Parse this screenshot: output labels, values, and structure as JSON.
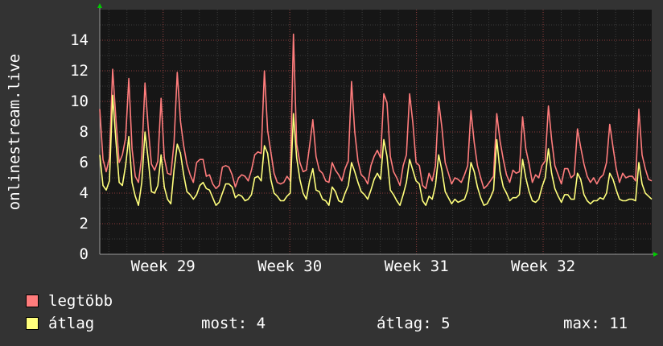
{
  "chart_data": {
    "type": "line",
    "title": "",
    "ylabel": "onlinestream.live",
    "xlabel": "",
    "ylim": [
      0,
      16
    ],
    "yticks": [
      0,
      2,
      4,
      6,
      8,
      10,
      12,
      14
    ],
    "x_tick_labels": [
      "Week 29",
      "Week 30",
      "Week 31",
      "Week 32"
    ],
    "grid": true,
    "legend_placement": "bottom-left",
    "x_unit": "day",
    "x_range": [
      0,
      30.5
    ],
    "series": [
      {
        "name": "legtöbb",
        "color": "#ff7c7c",
        "values": [
          9.5,
          6.2,
          5.4,
          6.3,
          12.1,
          8.8,
          6.0,
          6.5,
          7.6,
          11.5,
          6.9,
          5.1,
          4.7,
          6.4,
          11.2,
          8.3,
          5.9,
          5.5,
          6.1,
          10.2,
          6.3,
          5.3,
          5.2,
          7.3,
          11.9,
          8.7,
          7.1,
          5.9,
          5.2,
          4.7,
          6.0,
          6.2,
          6.2,
          5.1,
          5.2,
          4.6,
          4.3,
          4.5,
          5.7,
          5.8,
          5.7,
          5.2,
          4.4,
          5.0,
          5.2,
          5.1,
          4.8,
          5.5,
          6.5,
          6.7,
          6.6,
          12.0,
          8.1,
          6.7,
          5.3,
          4.7,
          4.6,
          4.7,
          5.1,
          4.8,
          14.4,
          7.2,
          6.0,
          5.4,
          5.5,
          7.1,
          8.8,
          6.4,
          5.5,
          5.3,
          4.8,
          4.7,
          6.0,
          5.5,
          5.2,
          4.8,
          5.6,
          6.1,
          11.3,
          8.0,
          6.1,
          5.2,
          5.0,
          4.6,
          5.8,
          6.4,
          6.8,
          6.3,
          10.5,
          9.9,
          6.4,
          5.4,
          5.0,
          4.5,
          5.8,
          6.5,
          10.5,
          8.6,
          6.0,
          5.8,
          4.5,
          4.3,
          5.3,
          4.8,
          5.8,
          10.0,
          8.3,
          6.0,
          5.3,
          4.6,
          5.0,
          4.9,
          4.7,
          5.2,
          5.8,
          9.4,
          7.3,
          5.8,
          5.0,
          4.3,
          4.5,
          4.8,
          5.1,
          9.2,
          7.4,
          6.2,
          5.2,
          4.7,
          5.5,
          5.3,
          5.4,
          9.0,
          6.9,
          5.9,
          4.7,
          5.2,
          5.0,
          5.8,
          6.1,
          9.7,
          7.5,
          5.8,
          5.2,
          4.6,
          5.6,
          5.6,
          5.0,
          5.2,
          8.2,
          7.0,
          5.9,
          5.1,
          4.7,
          5.0,
          4.6,
          5.0,
          5.2,
          6.0,
          8.5,
          7.0,
          5.6,
          4.7,
          5.3,
          5.0,
          5.1,
          5.1,
          4.8,
          9.5,
          6.5,
          5.6,
          4.9,
          4.8
        ]
      },
      {
        "name": "átlag",
        "color": "#ffff7c",
        "values": [
          6.5,
          4.5,
          4.2,
          4.8,
          10.4,
          7.4,
          4.7,
          4.5,
          5.8,
          7.7,
          4.7,
          3.8,
          3.2,
          4.7,
          8.0,
          6.2,
          4.1,
          4.0,
          4.5,
          6.5,
          4.4,
          3.6,
          3.3,
          5.5,
          7.2,
          6.6,
          5.2,
          4.1,
          3.9,
          3.6,
          3.9,
          4.5,
          4.7,
          4.3,
          4.2,
          3.7,
          3.2,
          3.4,
          4.0,
          4.6,
          4.6,
          4.4,
          3.7,
          3.9,
          3.8,
          3.5,
          3.6,
          3.9,
          5.0,
          5.1,
          4.8,
          7.1,
          6.6,
          4.9,
          4.0,
          3.8,
          3.5,
          3.5,
          3.8,
          4.0,
          9.2,
          6.3,
          4.9,
          4.0,
          3.6,
          4.8,
          5.6,
          4.2,
          4.1,
          3.6,
          3.5,
          3.2,
          4.4,
          4.1,
          3.5,
          3.4,
          4.0,
          4.5,
          6.0,
          5.4,
          4.7,
          4.1,
          3.9,
          3.6,
          4.2,
          4.9,
          5.3,
          4.9,
          7.5,
          6.4,
          4.2,
          3.9,
          3.5,
          3.2,
          3.9,
          4.7,
          6.2,
          5.5,
          4.8,
          4.6,
          3.5,
          3.2,
          3.8,
          3.6,
          4.5,
          6.5,
          5.5,
          4.1,
          3.7,
          3.3,
          3.6,
          3.4,
          3.5,
          3.6,
          4.2,
          6.0,
          5.4,
          4.4,
          3.7,
          3.2,
          3.3,
          3.7,
          4.2,
          7.5,
          5.4,
          4.4,
          4.0,
          3.5,
          3.7,
          3.7,
          3.9,
          6.2,
          5.0,
          4.1,
          3.5,
          3.4,
          3.6,
          4.4,
          5.0,
          6.9,
          5.3,
          4.3,
          3.8,
          3.4,
          3.9,
          3.9,
          3.6,
          3.6,
          5.3,
          4.9,
          3.9,
          3.5,
          3.3,
          3.5,
          3.5,
          3.7,
          3.6,
          4.0,
          5.3,
          4.9,
          4.2,
          3.6,
          3.5,
          3.5,
          3.6,
          3.6,
          3.5,
          6.0,
          4.6,
          4.0,
          3.8,
          3.6
        ]
      }
    ]
  },
  "legend": {
    "max_label": "legtöbb",
    "avg_label": "átlag",
    "max_color": "#ff7c7c",
    "avg_color": "#ffff7c"
  },
  "stats": {
    "current": "most: 4",
    "average": "átlag: 5",
    "maximum": "max: 11"
  }
}
